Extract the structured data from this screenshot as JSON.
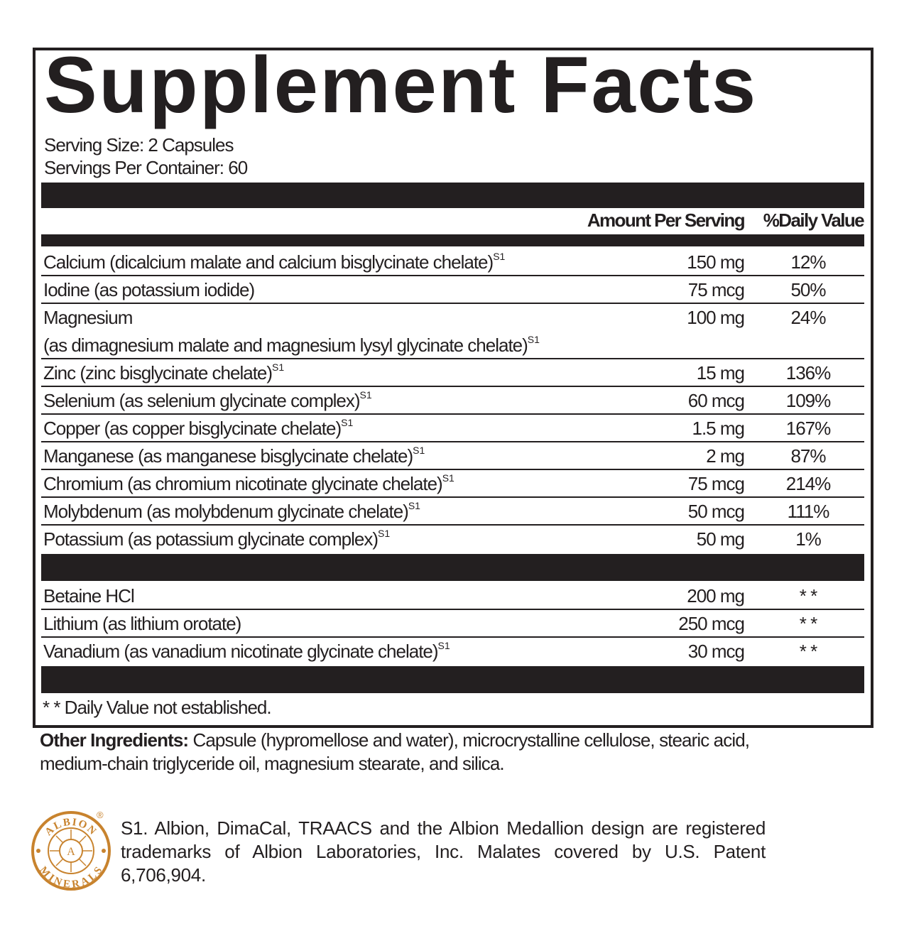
{
  "title": "Supplement Facts",
  "serving_size": "Serving Size: 2 Capsules",
  "servings_per_container": "Servings Per Container: 60",
  "columns": {
    "amount": "Amount Per Serving",
    "daily_value": "%Daily Value"
  },
  "nutrients": [
    {
      "name": "Calcium (dicalcium malate and calcium bisglycinate chelate)",
      "sup": "S1",
      "amount": "150 mg",
      "dv": "12%"
    },
    {
      "name": "Iodine (as potassium iodide)",
      "sup": "",
      "amount": "75 mcg",
      "dv": "50%"
    },
    {
      "name": "Magnesium",
      "sub": "(as dimagnesium malate and magnesium lysyl glycinate chelate)",
      "sup": "S1",
      "amount": "100 mg",
      "dv": "24%"
    },
    {
      "name": "Zinc (zinc bisglycinate chelate)",
      "sup": "S1",
      "amount": "15 mg",
      "dv": "136%"
    },
    {
      "name": "Selenium (as selenium glycinate complex)",
      "sup": "S1",
      "amount": "60 mcg",
      "dv": "109%"
    },
    {
      "name": "Copper (as copper bisglycinate chelate)",
      "sup": "S1",
      "amount": "1.5 mg",
      "dv": "167%"
    },
    {
      "name": "Manganese (as manganese bisglycinate chelate)",
      "sup": "S1",
      "amount": "2 mg",
      "dv": "87%"
    },
    {
      "name": "Chromium (as chromium nicotinate glycinate chelate)",
      "sup": "S1",
      "amount": "75 mcg",
      "dv": "214%"
    },
    {
      "name": "Molybdenum (as molybdenum glycinate chelate)",
      "sup": "S1",
      "amount": "50 mcg",
      "dv": "111%"
    },
    {
      "name": "Potassium (as potassium glycinate complex)",
      "sup": "S1",
      "amount": "50 mg",
      "dv": "1%"
    }
  ],
  "other_nutrients": [
    {
      "name": "Betaine HCl",
      "sup": "",
      "amount": "200 mg",
      "dv": "* *"
    },
    {
      "name": "Lithium (as lithium orotate)",
      "sup": "",
      "amount": "250 mcg",
      "dv": "* *"
    },
    {
      "name": "Vanadium (as vanadium nicotinate glycinate chelate)",
      "sup": "S1",
      "amount": "30 mcg",
      "dv": "* *"
    }
  ],
  "footnote": "* *  Daily Value not established.",
  "other_ingredients": {
    "label": "Other Ingredients:",
    "text": " Capsule (hypromellose and water), microcrystalline cellulose, stearic acid, medium-chain triglyceride oil, magnesium stearate, and silica."
  },
  "trademark_note": "S1. Albion, DimaCal, TRAACS and the Albion Medallion design are registered trademarks of Albion Laboratories, Inc. Malates covered by U.S. Patent 6,706,904.",
  "logo": {
    "text_top": "ALBION",
    "text_bottom": "MINERALS",
    "center": "A",
    "color": "#c8832e"
  }
}
